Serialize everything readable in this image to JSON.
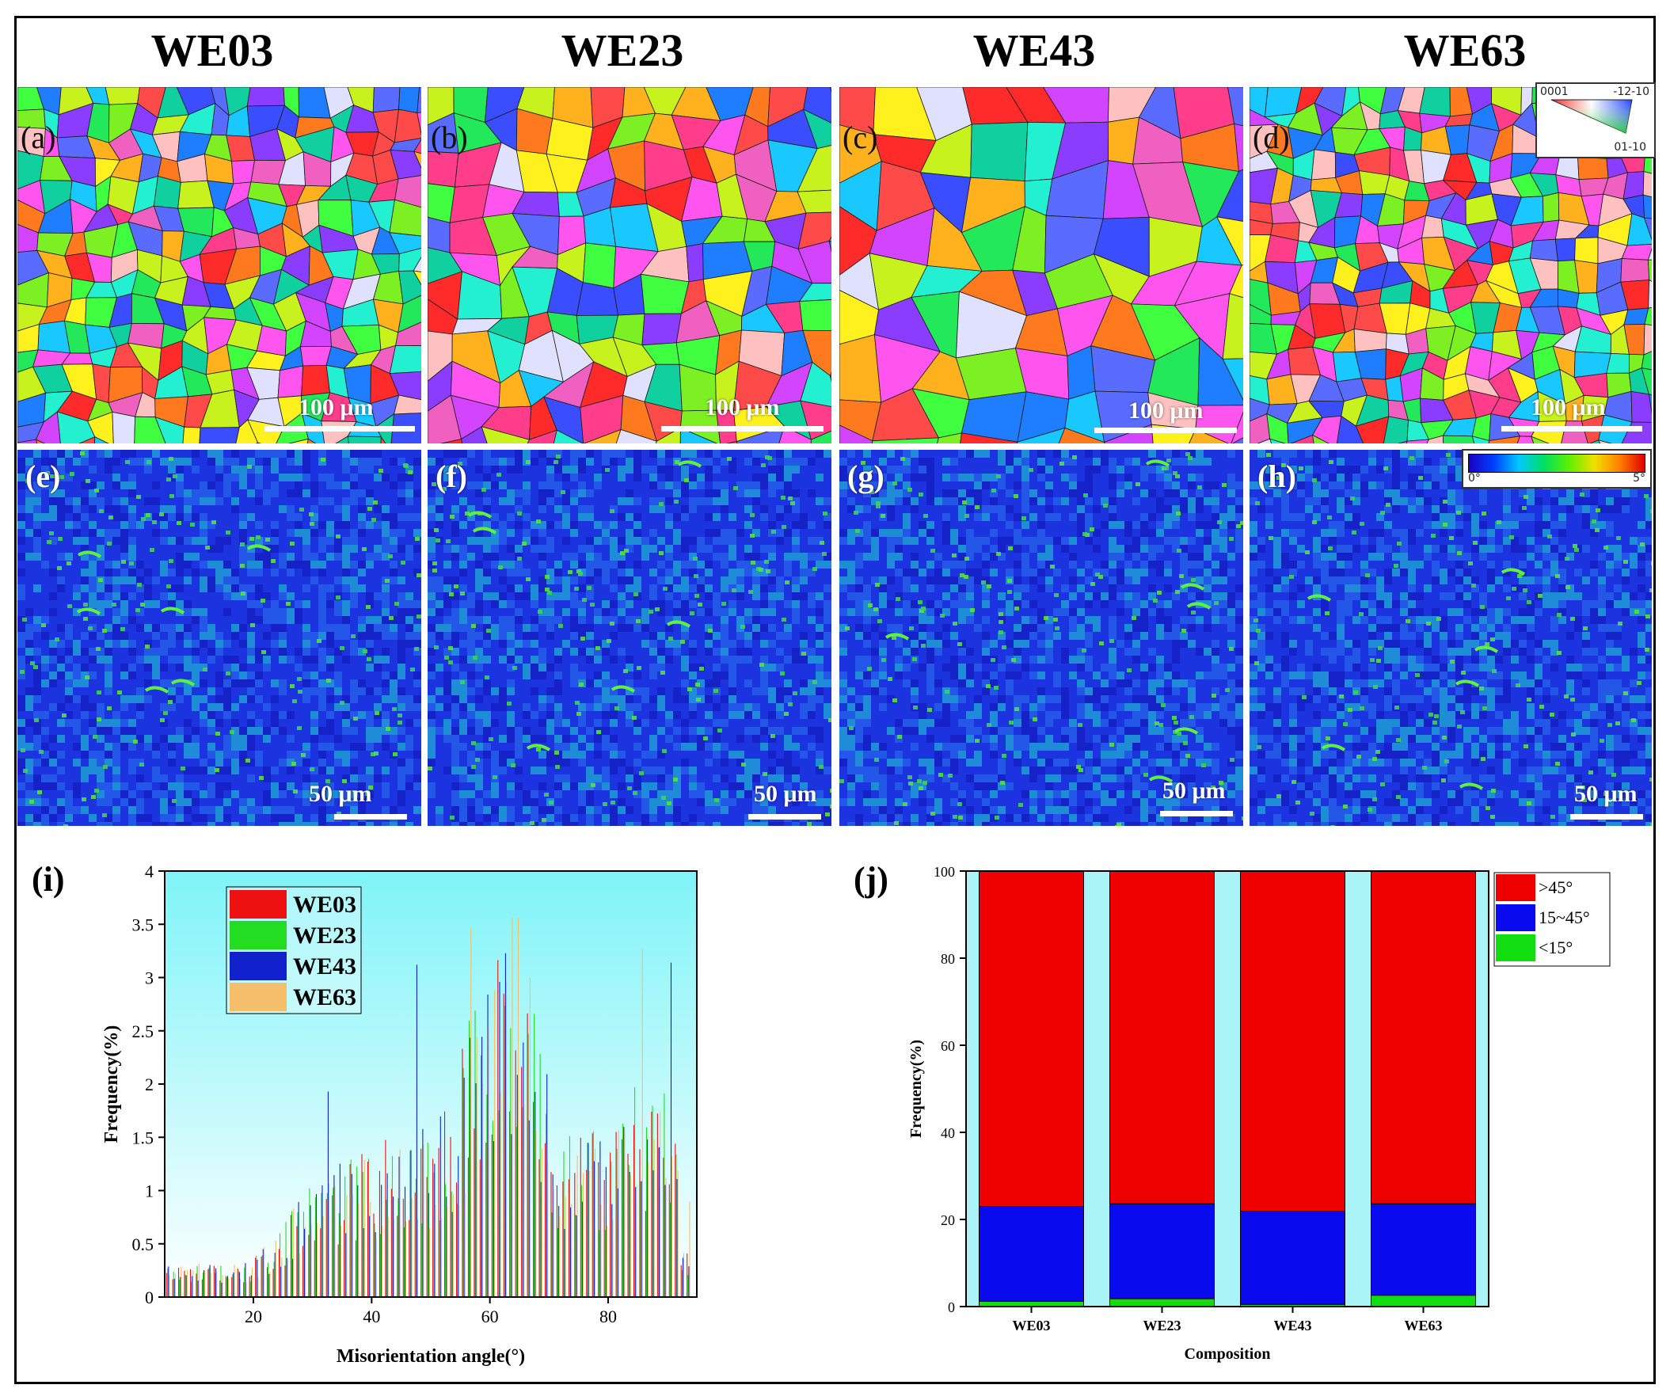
{
  "columns": [
    "WE03",
    "WE23",
    "WE43",
    "WE63"
  ],
  "ipf_panels": [
    {
      "label": "(a)",
      "scale": "100 μm",
      "grain": "fine"
    },
    {
      "label": "(b)",
      "scale": "100 μm",
      "grain": "medium"
    },
    {
      "label": "(c)",
      "scale": "100 μm",
      "grain": "coarse"
    },
    {
      "label": "(d)",
      "scale": "100 μm",
      "grain": "fine"
    }
  ],
  "kam_panels": [
    {
      "label": "(e)",
      "scale": "50 μm"
    },
    {
      "label": "(f)",
      "scale": "50 μm"
    },
    {
      "label": "(g)",
      "scale": "50 μm"
    },
    {
      "label": "(h)",
      "scale": "50 μm"
    }
  ],
  "ipf_key": {
    "top_left": "0001",
    "top_right": "-12-10",
    "bottom_right": "01-10"
  },
  "kam_key": {
    "min": "0°",
    "max": "5°"
  },
  "chart_data": [
    {
      "panel": "(i)",
      "type": "bar",
      "title": "",
      "xlabel": "Misorientation angle(°)",
      "ylabel": "Frequency(%)",
      "xlim": [
        5,
        95
      ],
      "ylim": [
        0,
        4
      ],
      "xticks": [
        20,
        40,
        60,
        80
      ],
      "yticks": [
        0,
        0.5,
        1,
        1.5,
        2,
        2.5,
        3,
        3.5,
        4
      ],
      "legend_position": "top-left",
      "series": [
        {
          "name": "WE03",
          "color": "#ee1111"
        },
        {
          "name": "WE23",
          "color": "#22dd22"
        },
        {
          "name": "WE43",
          "color": "#1122cc"
        },
        {
          "name": "WE63",
          "color": "#f5be6a"
        }
      ],
      "highlights": [
        {
          "series": "WE43",
          "x": 47.5,
          "y": 3.12
        },
        {
          "series": "WE63",
          "x": 56.5,
          "y": 3.47
        },
        {
          "series": "WE63",
          "x": 64,
          "y": 3.56
        },
        {
          "series": "WE43",
          "x": 90.5,
          "y": 3.14
        },
        {
          "series": "WE63",
          "x": 85.5,
          "y": 3.27
        },
        {
          "series": "WE43",
          "x": 32.5,
          "y": 1.93
        },
        {
          "series": "WE63",
          "x": 93.5,
          "y": 0.9
        }
      ]
    },
    {
      "panel": "(j)",
      "type": "bar",
      "stacked": true,
      "title": "",
      "xlabel": "Composition",
      "ylabel": "Frequency(%)",
      "categories": [
        "WE03",
        "WE23",
        "WE43",
        "WE63"
      ],
      "ylim": [
        0,
        100
      ],
      "yticks": [
        0,
        20,
        40,
        60,
        80,
        100
      ],
      "legend_position": "top-right",
      "series": [
        {
          "name": "<15°",
          "color": "#11dd11",
          "values": [
            1.2,
            1.8,
            0.5,
            2.6
          ]
        },
        {
          "name": "15~45°",
          "color": "#0a0aee",
          "values": [
            21.8,
            21.8,
            21.4,
            21.0
          ]
        },
        {
          "name": ">45°",
          "color": "#ee0000",
          "values": [
            77.0,
            76.4,
            78.1,
            76.4
          ]
        }
      ]
    }
  ]
}
